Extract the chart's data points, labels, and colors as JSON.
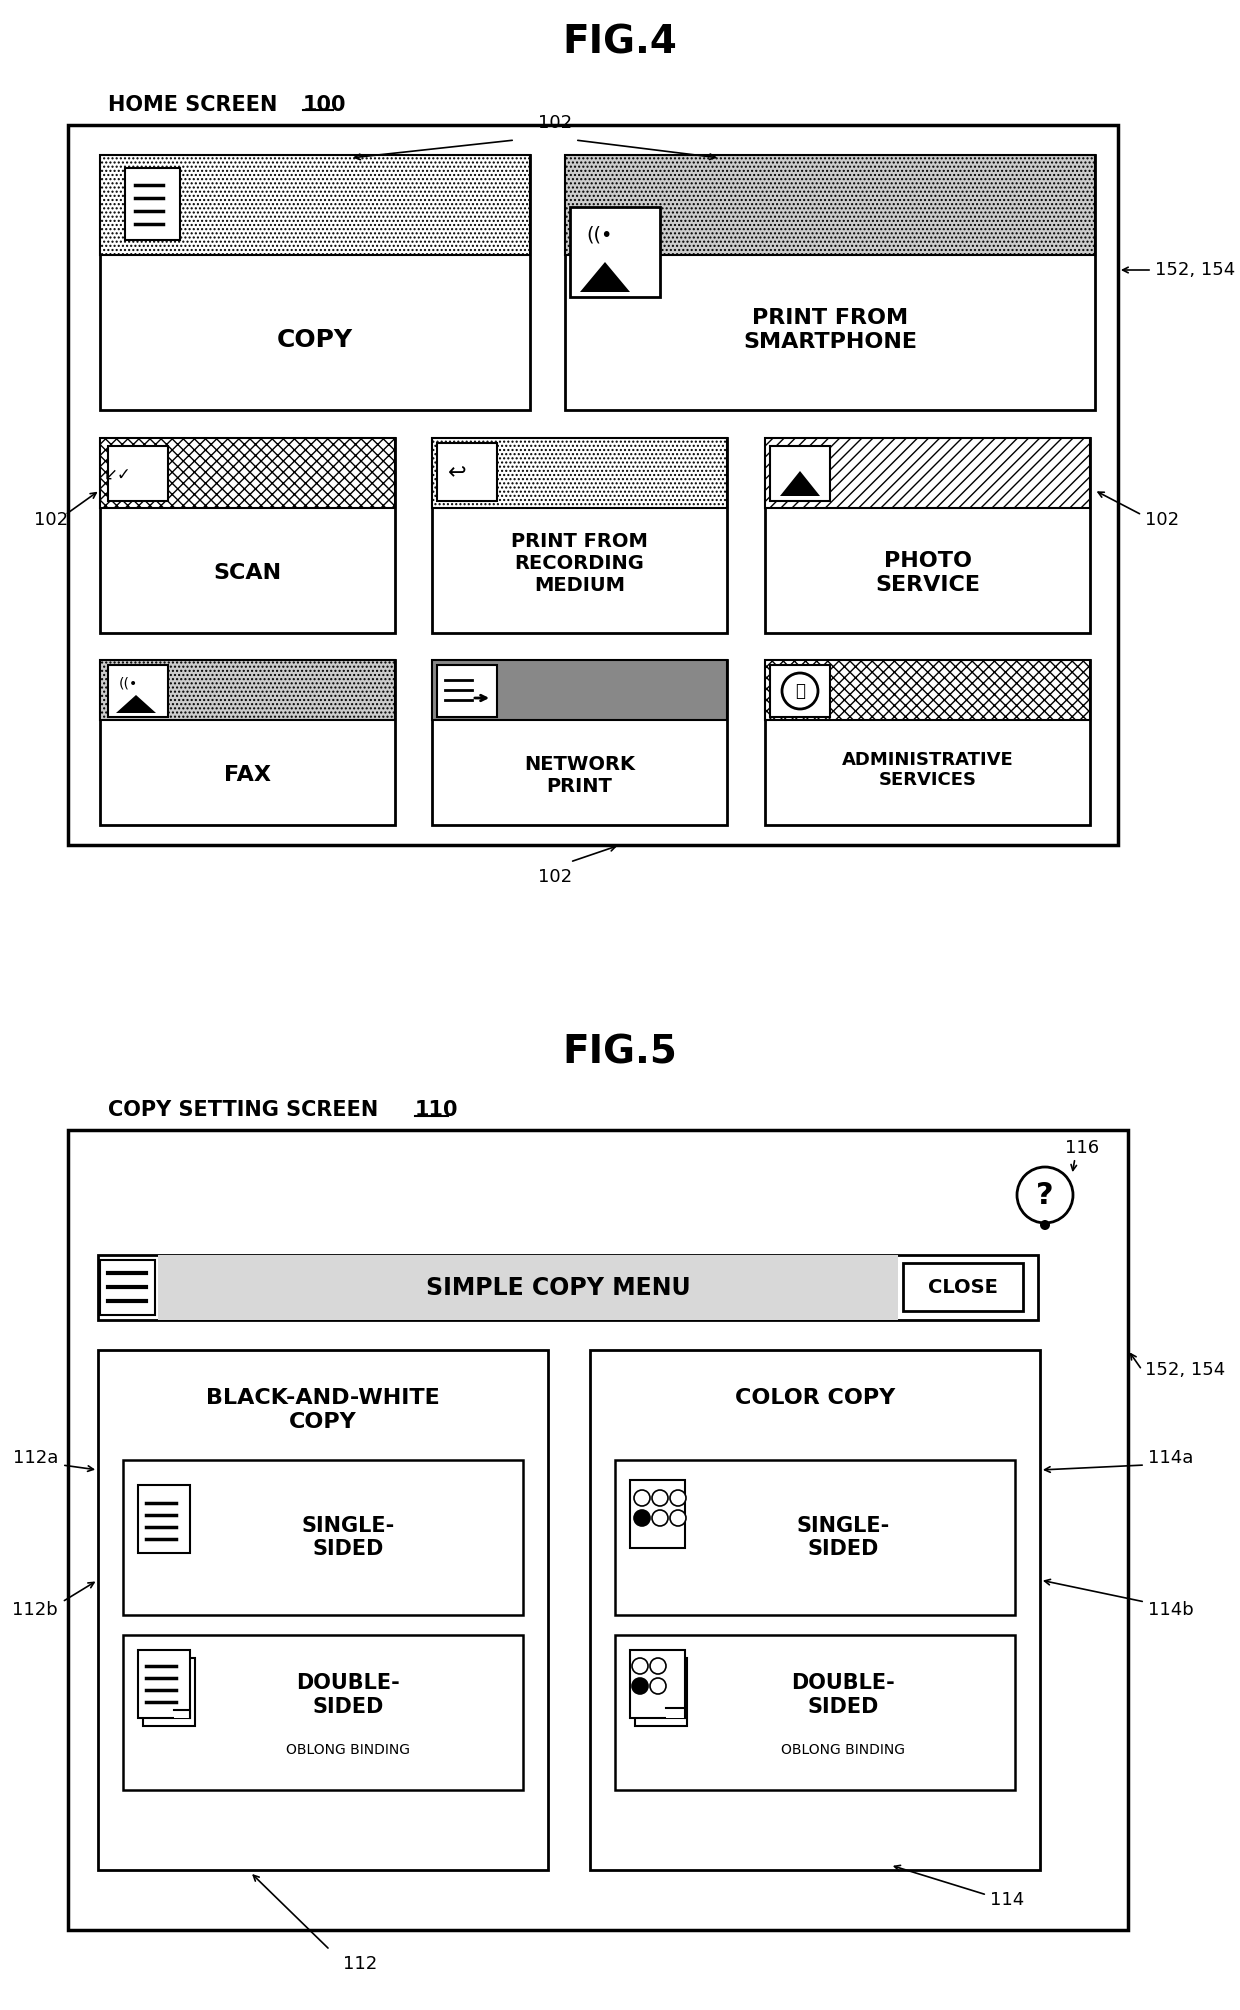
{
  "fig_title1": "FIG.4",
  "fig_title2": "FIG.5",
  "home_screen_label": "HOME SCREEN",
  "home_screen_num": "100",
  "copy_setting_label": "COPY SETTING SCREEN",
  "copy_setting_num": "110",
  "buttons_row1": [
    "COPY",
    "PRINT FROM\nSMARTPHONE"
  ],
  "buttons_row2": [
    "SCAN",
    "PRINT FROM\nRECORDING\nMEDIUM",
    "PHOTO\nSERVICE"
  ],
  "buttons_row3": [
    "FAX",
    "NETWORK\nPRINT",
    "ADMINISTRATIVE\nSERVICES"
  ],
  "label_102": "102",
  "label_152_154": "152, 154",
  "label_112": "112",
  "label_112a": "112a",
  "label_112b": "112b",
  "label_114": "114",
  "label_114a": "114a",
  "label_114b": "114b",
  "label_116": "116",
  "bg_color": "#ffffff",
  "box_color": "#000000",
  "hatch_dot": ".",
  "hatch_cross": "x",
  "hatch_dense": "/",
  "gray_fill": "#cccccc",
  "light_gray": "#e8e8e8",
  "dot_fill": "#d0d0d0"
}
